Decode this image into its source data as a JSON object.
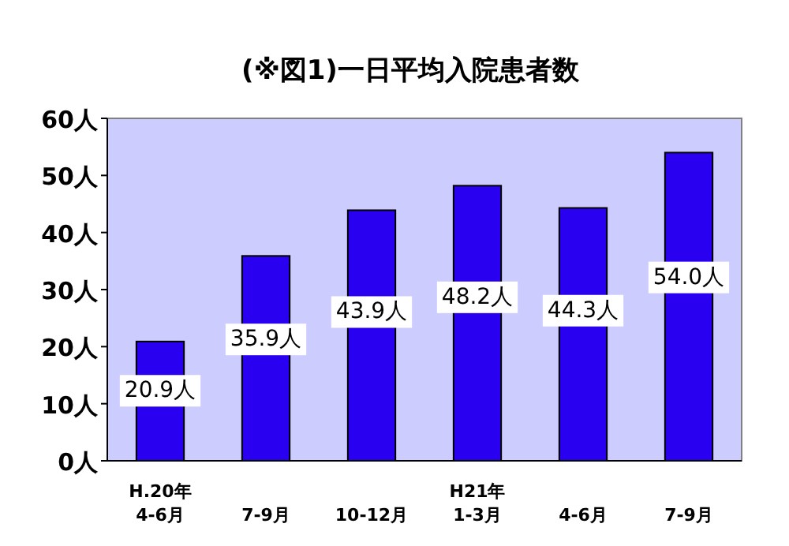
{
  "chart_data": {
    "type": "bar",
    "title": "(※図1)一日平均入院患者数",
    "categories": [
      "H.20年\n4-6月",
      "7-9月",
      "10-12月",
      "H21年\n1-3月",
      "4-6月",
      "7-9月"
    ],
    "values": [
      20.9,
      35.9,
      43.9,
      48.2,
      44.3,
      54.0
    ],
    "value_labels": [
      "20.9人",
      "35.9人",
      "43.9人",
      "48.2人",
      "44.3人",
      "54.0人"
    ],
    "color": "#2a00f0",
    "ylim": [
      0,
      60
    ],
    "yticks": [
      {
        "value": 0,
        "label": "0人"
      },
      {
        "value": 10,
        "label": "10人"
      },
      {
        "value": 20,
        "label": "20人"
      },
      {
        "value": 30,
        "label": "30人"
      },
      {
        "value": 40,
        "label": "40人"
      },
      {
        "value": 50,
        "label": "50人"
      },
      {
        "value": 60,
        "label": "60人"
      }
    ]
  }
}
